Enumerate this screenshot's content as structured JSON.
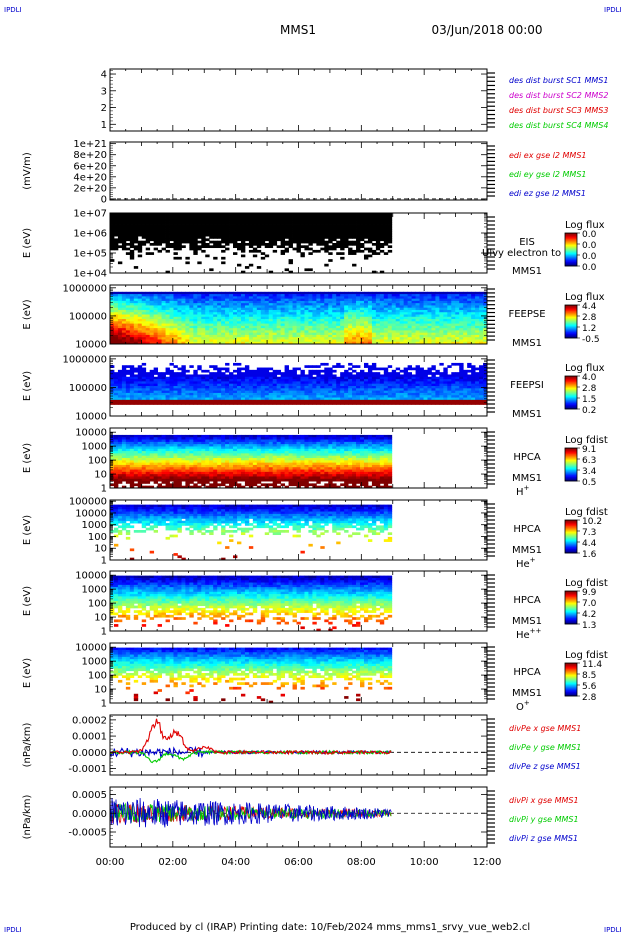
{
  "corner_marks": [
    "IPDLI",
    "IPDLI",
    "IPDLI",
    "IPDLI"
  ],
  "header": {
    "mission": "MMS1",
    "date": "03/Jun/2018 00:00"
  },
  "footer": {
    "text": "Produced by cl (IRAP)    Printing date: 10/Feb/2024    mms_mms1_srvy_vue_web2.cl"
  },
  "colors": {
    "red": "#e00000",
    "green": "#00cc00",
    "blue": "#0000cc",
    "magenta": "#cc00cc",
    "darkblue": "#000099"
  },
  "chart_data": {
    "type": "multi-panel time series / spectrogram",
    "x_ticks": [
      "00:00",
      "02:00",
      "04:00",
      "06:00",
      "08:00",
      "10:00",
      "12:00"
    ],
    "x_range_hours": [
      0,
      12
    ],
    "data_end_hours": 8.95,
    "panels": [
      {
        "id": "p1",
        "kind": "line",
        "y_ticks": [
          "4",
          "3",
          "2",
          "1"
        ],
        "y_tick_values": [
          4,
          3,
          2,
          1
        ],
        "ylim": [
          0.6,
          4.3
        ],
        "ylabel": "",
        "legend": [
          {
            "text": "des dist burst SC1 MMS1",
            "color": "#0000cc"
          },
          {
            "text": "des dist burst SC2 MMS2",
            "color": "#cc00cc"
          },
          {
            "text": "des dist burst SC3 MMS3",
            "color": "#e00000"
          },
          {
            "text": "des dist burst SC4 MMS4",
            "color": "#00cc00"
          }
        ]
      },
      {
        "id": "p2",
        "kind": "line",
        "y_ticks": [
          "1e+21",
          "8e+20",
          "6e+20",
          "4e+20",
          "2e+20",
          "0"
        ],
        "y_tick_values": [
          1e+21,
          8e+20,
          6e+20,
          4e+20,
          2e+20,
          0
        ],
        "ylim": [
          -2e+19,
          1.03e+21
        ],
        "ylabel": "(mV/m)",
        "zero_line": 0,
        "legend": [
          {
            "text": "edi ex gse l2 MMS1",
            "color": "#e00000"
          },
          {
            "text": "edi ey gse l2 MMS1",
            "color": "#00cc00"
          },
          {
            "text": "edi ez gse l2 MMS1",
            "color": "#0000cc"
          }
        ]
      },
      {
        "id": "p3",
        "kind": "spectrogram",
        "y_ticks": [
          "1e+07",
          "1e+06",
          "1e+05",
          "1e+04"
        ],
        "y_tick_values": [
          7,
          6,
          5,
          4
        ],
        "ylim": [
          4,
          7
        ],
        "log": true,
        "ylabel": "E (eV)",
        "instrument": [
          "EIS",
          "MMS1"
        ],
        "overlay_label": "Ulvy electron to",
        "colorbar": {
          "title": "Log flux",
          "ticks": [
            "0.0",
            "0.0",
            "0.0",
            "0.0"
          ]
        }
      },
      {
        "id": "p4",
        "kind": "spectrogram",
        "y_ticks": [
          "1000000",
          "100000",
          "10000"
        ],
        "y_tick_values": [
          6,
          5,
          4
        ],
        "ylim": [
          4,
          6.1
        ],
        "log": true,
        "ylabel": "E (eV)",
        "instrument": [
          "FEEPSE",
          "MMS1"
        ],
        "colorbar": {
          "title": "Log flux",
          "ticks": [
            "4.4",
            "2.8",
            "1.2",
            "-0.5"
          ]
        }
      },
      {
        "id": "p5",
        "kind": "spectrogram",
        "y_ticks": [
          "1000000",
          "100000",
          "10000"
        ],
        "y_tick_values": [
          6,
          5,
          4
        ],
        "ylim": [
          4,
          6.1
        ],
        "log": true,
        "ylabel": "E (eV)",
        "instrument": [
          "FEEPSI",
          "MMS1"
        ],
        "colorbar": {
          "title": "Log flux",
          "ticks": [
            "4.0",
            "2.8",
            "1.5",
            "0.2"
          ]
        }
      },
      {
        "id": "p6",
        "kind": "spectrogram",
        "y_ticks": [
          "10000",
          "1000",
          "100",
          "10",
          "1"
        ],
        "y_tick_values": [
          4,
          3,
          2,
          1,
          0
        ],
        "ylim": [
          0,
          4.3
        ],
        "log": true,
        "ylabel": "E (eV)",
        "instrument": [
          "HPCA",
          "MMS1"
        ],
        "species": "H",
        "species_sup": "+",
        "colorbar": {
          "title": "Log fdist",
          "ticks": [
            "9.1",
            "6.3",
            "3.4",
            "0.5"
          ]
        }
      },
      {
        "id": "p7",
        "kind": "spectrogram",
        "y_ticks": [
          "100000",
          "10000",
          "1000",
          "100",
          "10",
          "1"
        ],
        "y_tick_values": [
          5,
          4,
          3,
          2,
          1,
          0
        ],
        "ylim": [
          0,
          5.1
        ],
        "log": true,
        "ylabel": "E (eV)",
        "instrument": [
          "HPCA",
          "MMS1"
        ],
        "species": "He",
        "species_sup": "+",
        "colorbar": {
          "title": "Log fdist",
          "ticks": [
            "10.2",
            "7.3",
            "4.4",
            "1.6"
          ]
        }
      },
      {
        "id": "p8",
        "kind": "spectrogram",
        "y_ticks": [
          "10000",
          "1000",
          "100",
          "10",
          "1"
        ],
        "y_tick_values": [
          4,
          3,
          2,
          1,
          0
        ],
        "ylim": [
          0,
          4.3
        ],
        "log": true,
        "ylabel": "E (eV)",
        "instrument": [
          "HPCA",
          "MMS1"
        ],
        "species": "He",
        "species_sup": "++",
        "colorbar": {
          "title": "Log fdist",
          "ticks": [
            "9.9",
            "7.0",
            "4.2",
            "1.3"
          ]
        }
      },
      {
        "id": "p9",
        "kind": "spectrogram",
        "y_ticks": [
          "10000",
          "1000",
          "100",
          "10",
          "1"
        ],
        "y_tick_values": [
          4,
          3,
          2,
          1,
          0
        ],
        "ylim": [
          0,
          4.3
        ],
        "log": true,
        "ylabel": "E (eV)",
        "instrument": [
          "HPCA",
          "MMS1"
        ],
        "species": "O",
        "species_sup": "+",
        "colorbar": {
          "title": "Log fdist",
          "ticks": [
            "11.4",
            "8.5",
            "5.6",
            "2.8"
          ]
        }
      },
      {
        "id": "p10",
        "kind": "line",
        "y_ticks": [
          "0.0002",
          "0.0001",
          "0.0000",
          "-0.0001"
        ],
        "y_tick_values": [
          0.0002,
          0.0001,
          0,
          -0.0001
        ],
        "ylim": [
          -0.00014,
          0.00023
        ],
        "ylabel": "(nPa/km)",
        "zero_line": 0,
        "legend": [
          {
            "text": "divPe x gse MMS1",
            "color": "#e00000"
          },
          {
            "text": "divPe y gse MMS1",
            "color": "#00cc00"
          },
          {
            "text": "divPe z gse MMS1",
            "color": "#0000cc"
          }
        ],
        "series_features": [
          {
            "name": "x",
            "color": "#e00000",
            "peaks": [
              [
                1.45,
                0.00019
              ],
              [
                2.1,
                0.00012
              ],
              [
                3.0,
                3e-05
              ]
            ]
          },
          {
            "name": "y",
            "color": "#00cc00",
            "troughs": [
              [
                1.4,
                -6e-05
              ],
              [
                2.3,
                -4e-05
              ]
            ]
          },
          {
            "name": "z",
            "color": "#0000cc",
            "noise": 1.5e-05
          }
        ]
      },
      {
        "id": "p11",
        "kind": "line",
        "y_ticks": [
          "0.0005",
          "0.0000",
          "-0.0005"
        ],
        "y_tick_values": [
          0.0005,
          0,
          -0.0005
        ],
        "ylim": [
          -0.0009,
          0.0007
        ],
        "ylabel": "(nPa/km)",
        "zero_line": 0,
        "legend": [
          {
            "text": "divPi x gse MMS1",
            "color": "#e00000"
          },
          {
            "text": "divPi y gse MMS1",
            "color": "#00cc00"
          },
          {
            "text": "divPi z gse MMS1",
            "color": "#0000cc"
          }
        ],
        "series_features": [
          {
            "name": "noise",
            "amplitude_start": 0.0005,
            "amplitude_end": 0.00015
          }
        ]
      }
    ]
  }
}
